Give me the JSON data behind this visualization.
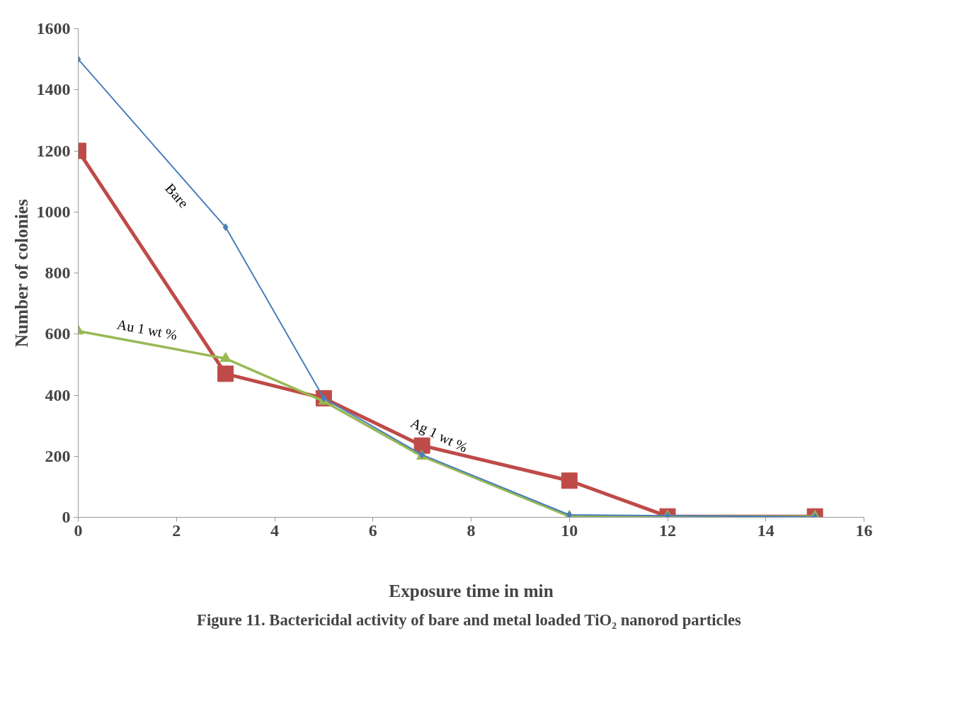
{
  "chart_data": {
    "type": "line",
    "title": "Figure 11. Bactericidal activity of  bare and metal loaded TiO₂ nanorod particles",
    "xlabel": "Exposure time in min",
    "ylabel": "Number of colonies",
    "x": [
      0,
      3,
      5,
      7,
      10,
      12,
      15
    ],
    "series": [
      {
        "name": "Bare",
        "color": "#4a7ebb",
        "marker": "diamond",
        "values": [
          1500,
          950,
          390,
          205,
          8,
          5,
          2
        ]
      },
      {
        "name": "Ag 1 wt %",
        "color": "#be4b48",
        "marker": "square",
        "values": [
          1200,
          470,
          390,
          235,
          120,
          3,
          3
        ]
      },
      {
        "name": "Au 1 wt %",
        "color": "#98b954",
        "marker": "triangle",
        "values": [
          610,
          520,
          380,
          200,
          3,
          3,
          3
        ]
      }
    ],
    "xlim": [
      0,
      16
    ],
    "xticks": [
      0,
      2,
      4,
      6,
      8,
      10,
      12,
      14,
      16
    ],
    "ylim": [
      0,
      1600
    ],
    "yticks": [
      0,
      200,
      400,
      600,
      800,
      1000,
      1200,
      1400,
      1600
    ],
    "grid": false,
    "line_style": "solid"
  }
}
